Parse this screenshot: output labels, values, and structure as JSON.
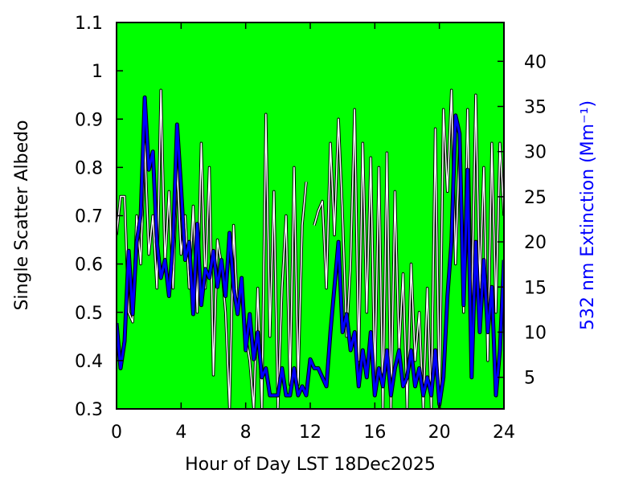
{
  "chart_data": {
    "type": "line",
    "xlabel": "Hour of Day LST 18Dec2025",
    "ylabel": "Single Scatter Albedo",
    "y2label": "532 nm Extinction (Mm⁻¹)",
    "background": "#00ff00",
    "x": [
      0,
      0.25,
      0.5,
      0.75,
      1,
      1.25,
      1.5,
      1.75,
      2,
      2.25,
      2.5,
      2.75,
      3,
      3.25,
      3.5,
      3.75,
      4,
      4.25,
      4.5,
      4.75,
      5,
      5.25,
      5.5,
      5.75,
      6,
      6.25,
      6.5,
      6.75,
      7,
      7.25,
      7.5,
      7.75,
      8,
      8.25,
      8.5,
      8.75,
      9,
      9.25,
      9.5,
      9.75,
      10,
      10.25,
      10.5,
      10.75,
      11,
      11.25,
      11.5,
      11.75,
      12,
      12.25,
      12.5,
      12.75,
      13,
      13.25,
      13.5,
      13.75,
      14,
      14.25,
      14.5,
      14.75,
      15,
      15.25,
      15.5,
      15.75,
      16,
      16.25,
      16.5,
      16.75,
      17,
      17.25,
      17.5,
      17.75,
      18,
      18.25,
      18.5,
      18.75,
      19,
      19.25,
      19.5,
      19.75,
      20,
      20.25,
      20.5,
      20.75,
      21,
      21.25,
      21.5,
      21.75,
      22,
      22.25,
      22.5,
      22.75,
      23,
      23.25,
      23.5,
      23.75,
      24
    ],
    "series": [
      {
        "name": "Single Scatter Albedo",
        "color": "#ffffff",
        "values": [
          0.66,
          0.74,
          0.74,
          0.5,
          0.48,
          0.7,
          0.6,
          0.85,
          0.62,
          0.7,
          0.55,
          0.96,
          0.6,
          0.75,
          0.55,
          0.8,
          0.62,
          0.7,
          0.55,
          0.72,
          0.5,
          0.85,
          0.55,
          0.8,
          0.37,
          0.65,
          0.6,
          0.5,
          0.3,
          0.68,
          0.5,
          0.55,
          0.45,
          0.4,
          0.3,
          0.55,
          0.3,
          0.91,
          0.45,
          0.75,
          0.3,
          0.55,
          0.7,
          0.35,
          0.8,
          0.35,
          0.68,
          0.77,
          null,
          0.68,
          0.71,
          0.73,
          0.55,
          0.85,
          0.66,
          0.9,
          0.7,
          0.45,
          0.6,
          0.92,
          0.4,
          0.85,
          0.5,
          0.82,
          0.35,
          0.8,
          0.3,
          0.83,
          0.3,
          0.75,
          0.42,
          0.58,
          0.3,
          0.6,
          0.4,
          0.5,
          0.3,
          0.55,
          0.3,
          0.88,
          0.3,
          0.92,
          0.75,
          0.96,
          0.6,
          0.85,
          0.5,
          0.92,
          0.5,
          0.95,
          0.55,
          0.8,
          0.4,
          0.85,
          0.5,
          0.85,
          0.7
        ]
      },
      {
        "name": "532 nm Extinction",
        "color": "#0000ff",
        "axis": "y2",
        "values": [
          11,
          6,
          9,
          19,
          12,
          20,
          23,
          36,
          28,
          30,
          20,
          16,
          18,
          14,
          20,
          33,
          26,
          18,
          20,
          12,
          22,
          13,
          17,
          16,
          19,
          15,
          18,
          14,
          21,
          15,
          12,
          16,
          8,
          12,
          7,
          10,
          5,
          6,
          3,
          3,
          3,
          6,
          3,
          3,
          6,
          3,
          4,
          3,
          7,
          6,
          6,
          5,
          4,
          10,
          15,
          20,
          10,
          12,
          8,
          10,
          4,
          8,
          5,
          10,
          3,
          6,
          4,
          8,
          3,
          6,
          8,
          4,
          5,
          8,
          4,
          6,
          3,
          5,
          3,
          8,
          2,
          5,
          14,
          20,
          34,
          32,
          13,
          28,
          5,
          20,
          10,
          18,
          10,
          15,
          3,
          8,
          18
        ]
      }
    ],
    "xlim": [
      0,
      24
    ],
    "xticks": [
      0,
      4,
      8,
      12,
      16,
      20,
      24
    ],
    "ylim": [
      0.3,
      1.1
    ],
    "yticks": [
      0.3,
      0.4,
      0.5,
      0.6,
      0.7,
      0.8,
      0.9,
      1,
      1.1
    ],
    "y2lim": [
      1.5,
      44.3
    ],
    "y2ticks": [
      5,
      10,
      15,
      20,
      25,
      30,
      35,
      40
    ]
  }
}
